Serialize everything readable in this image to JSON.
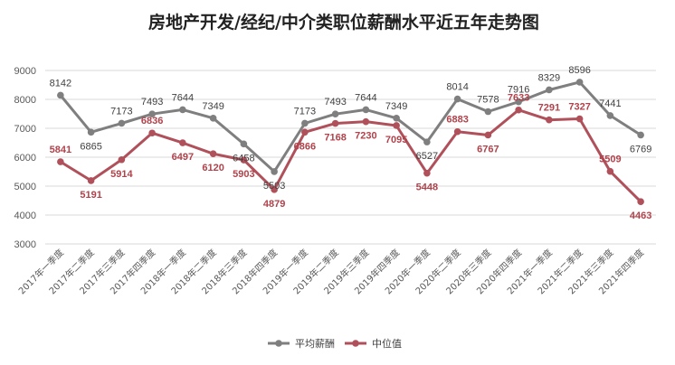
{
  "chart_data": {
    "type": "line",
    "title": "房地产开发/经纪/中介类职位薪酬水平近五年走势图",
    "xlabel": "",
    "ylabel": "",
    "ylim": [
      3000,
      9000
    ],
    "yticks": [
      3000,
      4000,
      5000,
      6000,
      7000,
      8000,
      9000
    ],
    "grid": true,
    "legend_position": "bottom",
    "categories": [
      "2017年一季度",
      "2017年二季度",
      "2017年三季度",
      "2017年四季度",
      "2018年一季度",
      "2018年二季度",
      "2018年三季度",
      "2018年四季度",
      "2019年一季度",
      "2019年二季度",
      "2019年三季度",
      "2019年四季度",
      "2020年一季度",
      "2020年二季度",
      "2020年三季度",
      "2020年四季度",
      "2021年一季度",
      "2021年二季度",
      "2021年三季度",
      "2021年四季度"
    ],
    "series": [
      {
        "name": "平均薪酬",
        "color": "#7f7f7f",
        "values": [
          8142,
          6865,
          7173,
          7493,
          7644,
          7349,
          6458,
          5503,
          7173,
          7493,
          7644,
          7349,
          6527,
          8014,
          7578,
          7916,
          8329,
          8596,
          7441,
          6769
        ]
      },
      {
        "name": "中位值",
        "color": "#b0505a",
        "values": [
          5841,
          5191,
          5914,
          6836,
          6497,
          6120,
          5903,
          4879,
          6866,
          7168,
          7230,
          7095,
          5448,
          6883,
          6767,
          7633,
          7291,
          7327,
          5509,
          4463
        ]
      }
    ]
  }
}
